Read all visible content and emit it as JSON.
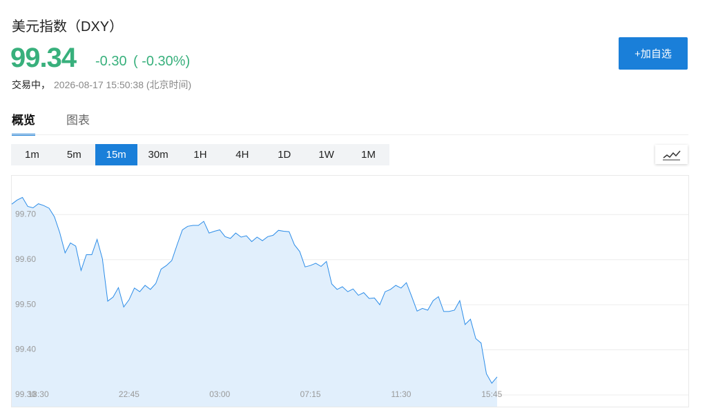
{
  "header": {
    "title": "美元指数（DXY）",
    "price": "99.34",
    "change": "-0.30",
    "change_pct": "( -0.30%)",
    "status": "交易中，",
    "timestamp": "2026-08-17 15:50:38 (北京时间)",
    "button": "+加自选"
  },
  "tabs": [
    {
      "label": "概览",
      "active": true
    },
    {
      "label": "图表"
    }
  ],
  "intervals": [
    {
      "label": "1m"
    },
    {
      "label": "5m"
    },
    {
      "label": "15m",
      "active": true
    },
    {
      "label": "30m"
    },
    {
      "label": "1H"
    },
    {
      "label": "4H"
    },
    {
      "label": "1D"
    },
    {
      "label": "1W"
    },
    {
      "label": "1M"
    }
  ],
  "chart_data": {
    "type": "area",
    "color": "#2b8ce8",
    "fill": "#e1effc",
    "grid": true,
    "ylim": [
      99.274,
      99.786
    ],
    "yticks": [
      {
        "value": 99.3,
        "label": "99.30"
      },
      {
        "value": 99.4,
        "label": "99.40"
      },
      {
        "value": 99.5,
        "label": "99.50"
      },
      {
        "value": 99.6,
        "label": "99.60"
      },
      {
        "value": 99.7,
        "label": "99.70"
      }
    ],
    "categories": [
      null,
      null,
      null,
      null,
      null,
      "18:30",
      null,
      null,
      null,
      null,
      null,
      null,
      null,
      null,
      null,
      null,
      null,
      null,
      null,
      null,
      null,
      null,
      "22:45",
      null,
      null,
      null,
      null,
      null,
      null,
      null,
      null,
      null,
      null,
      null,
      null,
      null,
      null,
      null,
      null,
      "03:00",
      null,
      null,
      null,
      null,
      null,
      null,
      null,
      null,
      null,
      null,
      null,
      null,
      null,
      null,
      null,
      null,
      "07:15",
      null,
      null,
      null,
      null,
      null,
      null,
      null,
      null,
      null,
      null,
      null,
      null,
      null,
      null,
      null,
      null,
      "11:30",
      null,
      null,
      null,
      null,
      null,
      null,
      null,
      null,
      null,
      null,
      null,
      null,
      null,
      null,
      null,
      null,
      "15:45",
      null
    ],
    "values": [
      99.723,
      99.732,
      99.738,
      99.718,
      99.715,
      99.724,
      99.72,
      99.714,
      99.695,
      99.66,
      99.615,
      99.637,
      99.63,
      99.576,
      99.611,
      99.611,
      99.645,
      99.602,
      99.508,
      99.517,
      99.538,
      99.495,
      99.511,
      99.537,
      99.529,
      99.543,
      99.534,
      99.547,
      99.579,
      99.587,
      99.598,
      99.633,
      99.666,
      99.674,
      99.676,
      99.676,
      99.685,
      99.659,
      99.663,
      99.666,
      99.651,
      99.647,
      99.659,
      99.65,
      99.653,
      99.64,
      99.65,
      99.642,
      99.651,
      99.654,
      99.665,
      99.663,
      99.662,
      99.633,
      99.618,
      99.584,
      99.587,
      99.592,
      99.585,
      99.596,
      99.546,
      99.534,
      99.54,
      99.529,
      99.535,
      99.521,
      99.527,
      99.514,
      99.515,
      99.5,
      99.529,
      99.534,
      99.543,
      99.537,
      99.549,
      99.518,
      99.486,
      99.492,
      99.488,
      99.509,
      99.518,
      99.485,
      99.485,
      99.488,
      99.509,
      99.456,
      99.468,
      99.425,
      99.415,
      99.347,
      99.326,
      99.34
    ]
  }
}
